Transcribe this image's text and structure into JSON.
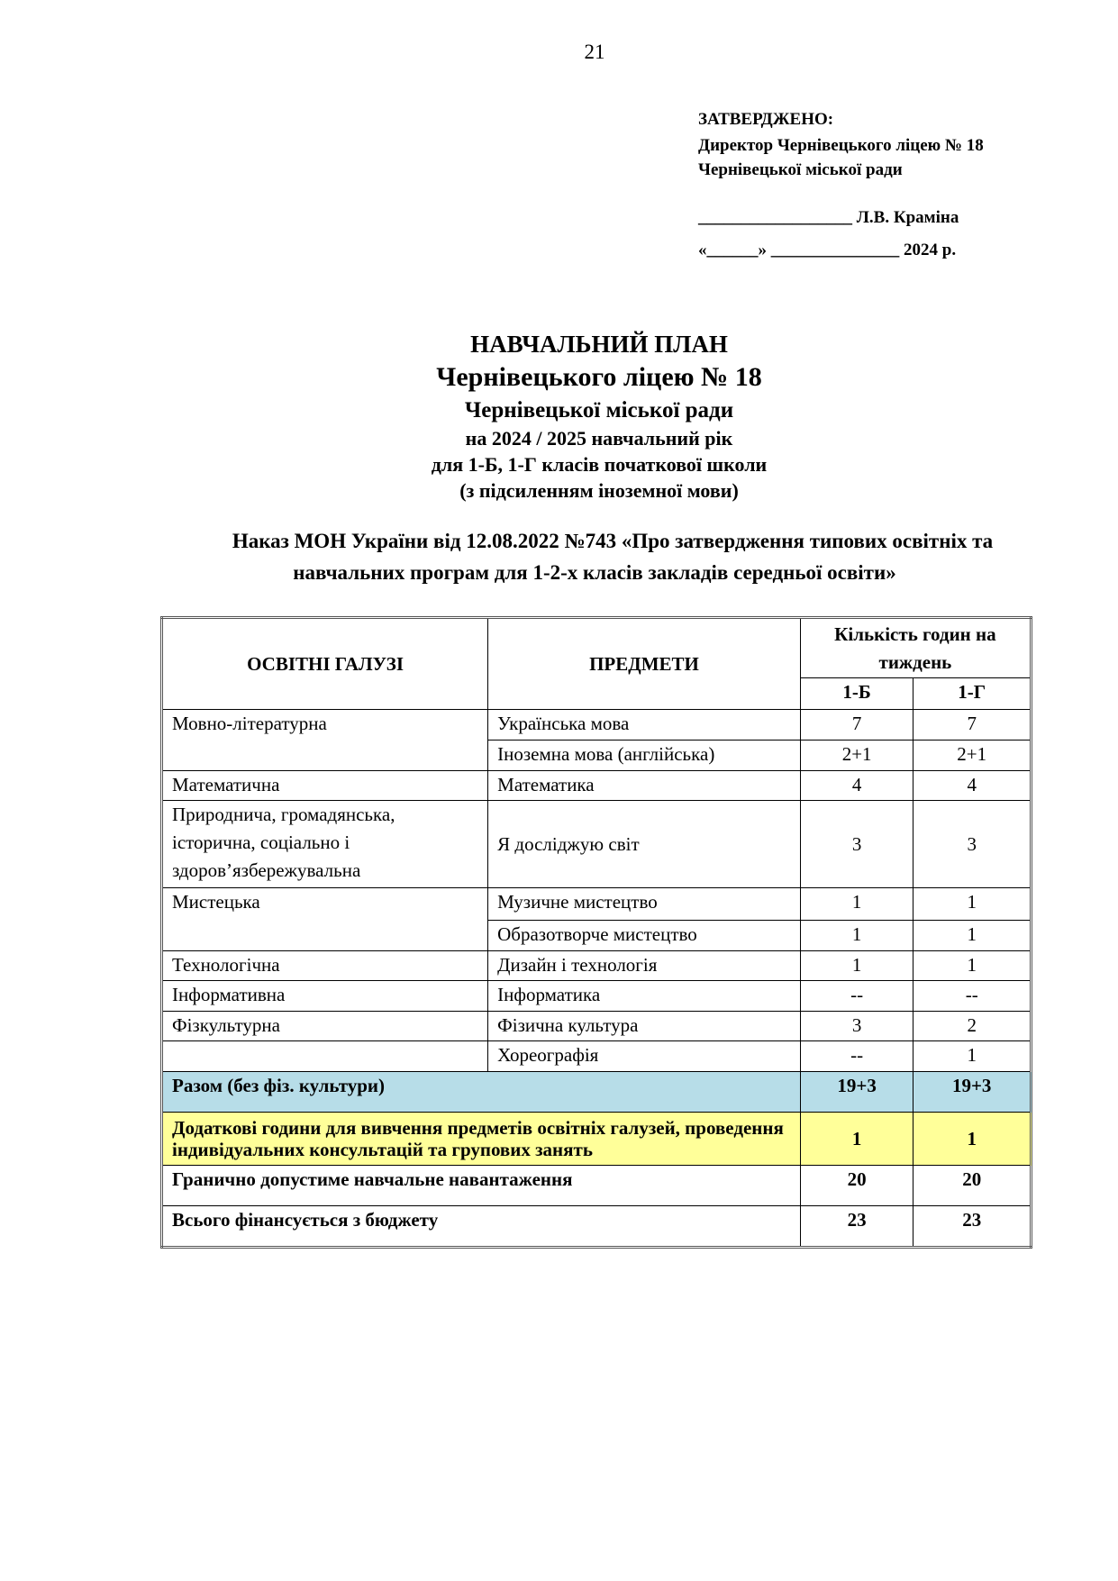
{
  "page_number": "21",
  "approval": {
    "heading": "ЗАТВЕРДЖЕНО:",
    "line1": "Директор Чернівецького ліцею № 18",
    "line2": "Чернівецької міської ради",
    "signature": "__________________ Л.В. Краміна",
    "date": "«______» _______________ 2024 р."
  },
  "title": {
    "l1": "НАВЧАЛЬНИЙ ПЛАН",
    "l2": "Чернівецького ліцею № 18",
    "l3": "Чернівецької міської ради",
    "l4": "на 2024 / 2025 навчальний рік",
    "l5": "для 1-Б, 1-Г класів початкової школи",
    "l6": "(з підсиленням іноземної мови)"
  },
  "order": {
    "l1": "Наказ МОН  України від 12.08.2022 №743 «Про затвердження типових освітніх та",
    "l2": "навчальних програм для 1-2-х класів закладів середньої освіти»"
  },
  "table": {
    "headers": {
      "area": "ОСВІТНІ ГАЛУЗІ",
      "subject": "ПРЕДМЕТИ",
      "hours": "Кількість годин на тиждень",
      "c1": "1-Б",
      "c2": "1-Г"
    },
    "rows": [
      {
        "area": "Мовно-літературна",
        "subject": "Українська мова",
        "c1": "7",
        "c2": "7"
      },
      {
        "area": "",
        "subject": "Іноземна мова (англійська)",
        "c1": "2+1",
        "c2": "2+1"
      },
      {
        "area": "Математична",
        "subject": "Математика",
        "c1": "4",
        "c2": "4"
      },
      {
        "area": "Природнича, громадянська, історична, соціально і здоров’язбережувальна",
        "subject": "Я досліджую світ",
        "c1": "3",
        "c2": "3"
      },
      {
        "area": "Мистецька",
        "subject": "Музичне мистецтво",
        "c1": "1",
        "c2": "1"
      },
      {
        "area": "",
        "subject": "Образотворче мистецтво",
        "c1": "1",
        "c2": "1"
      },
      {
        "area": "Технологічна",
        "subject": "Дизайн і технологія",
        "c1": "1",
        "c2": "1"
      },
      {
        "area": "Інформативна",
        "subject": "Інформатика",
        "c1": "--",
        "c2": "--"
      },
      {
        "area": "Фізкультурна",
        "subject": "Фізична культура",
        "c1": "3",
        "c2": "2"
      },
      {
        "area": "",
        "subject": "Хореографія",
        "c1": "--",
        "c2": "1"
      }
    ],
    "total": {
      "label": "Разом (без фіз. культури)",
      "c1": "19+3",
      "c2": "19+3"
    },
    "extra": {
      "label": "Додаткові години для вивчення предметів освітніх галузей, проведення індивідуальних консультацій та групових занять",
      "c1": "1",
      "c2": "1"
    },
    "max": {
      "label": "Гранично допустиме навчальне навантаження",
      "c1": "20",
      "c2": "20"
    },
    "budget": {
      "label": "Всього фінансується з бюджету",
      "c1": "23",
      "c2": "23"
    }
  },
  "colors": {
    "total_bg": "#b7dde8",
    "extra_bg": "#ffff99"
  }
}
